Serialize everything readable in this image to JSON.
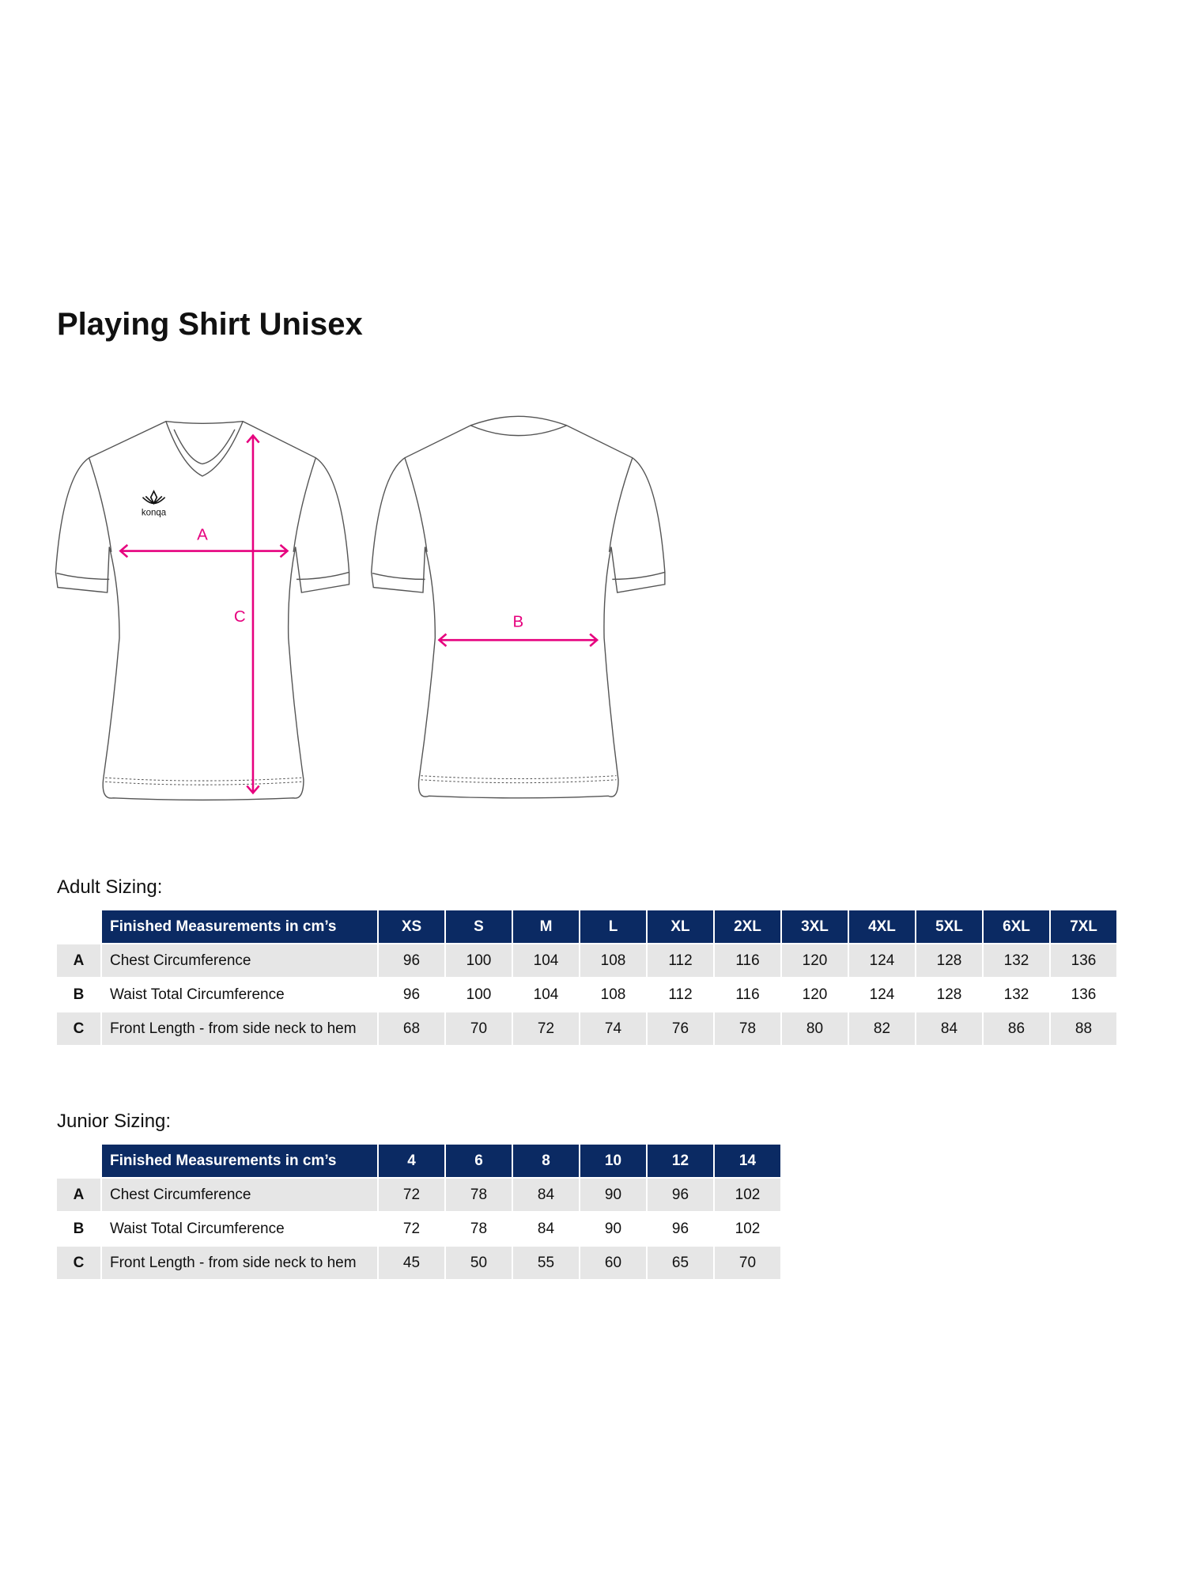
{
  "title": "Playing Shirt Unisex",
  "diagram": {
    "brand_logo_text": "konqa",
    "labels": {
      "a": "A",
      "b": "B",
      "c": "C"
    },
    "arrow_color": "#e6007e"
  },
  "colors": {
    "header_bg": "#0b2a63",
    "row_shade": "#e6e6e6"
  },
  "adult": {
    "heading": "Adult Sizing:",
    "header": "Finished Measurements in cm’s",
    "sizes": [
      "XS",
      "S",
      "M",
      "L",
      "XL",
      "2XL",
      "3XL",
      "4XL",
      "5XL",
      "6XL",
      "7XL"
    ],
    "rows": [
      {
        "key": "A",
        "name": "Chest Circumference",
        "values": [
          "96",
          "100",
          "104",
          "108",
          "112",
          "116",
          "120",
          "124",
          "128",
          "132",
          "136"
        ]
      },
      {
        "key": "B",
        "name": "Waist Total Circumference",
        "values": [
          "96",
          "100",
          "104",
          "108",
          "112",
          "116",
          "120",
          "124",
          "128",
          "132",
          "136"
        ]
      },
      {
        "key": "C",
        "name": "Front Length - from side neck to hem",
        "values": [
          "68",
          "70",
          "72",
          "74",
          "76",
          "78",
          "80",
          "82",
          "84",
          "86",
          "88"
        ]
      }
    ]
  },
  "junior": {
    "heading": "Junior Sizing:",
    "header": "Finished Measurements in cm’s",
    "sizes": [
      "4",
      "6",
      "8",
      "10",
      "12",
      "14"
    ],
    "rows": [
      {
        "key": "A",
        "name": "Chest Circumference",
        "values": [
          "72",
          "78",
          "84",
          "90",
          "96",
          "102"
        ]
      },
      {
        "key": "B",
        "name": "Waist Total Circumference",
        "values": [
          "72",
          "78",
          "84",
          "90",
          "96",
          "102"
        ]
      },
      {
        "key": "C",
        "name": "Front Length - from side neck to hem",
        "values": [
          "45",
          "50",
          "55",
          "60",
          "65",
          "70"
        ]
      }
    ]
  }
}
